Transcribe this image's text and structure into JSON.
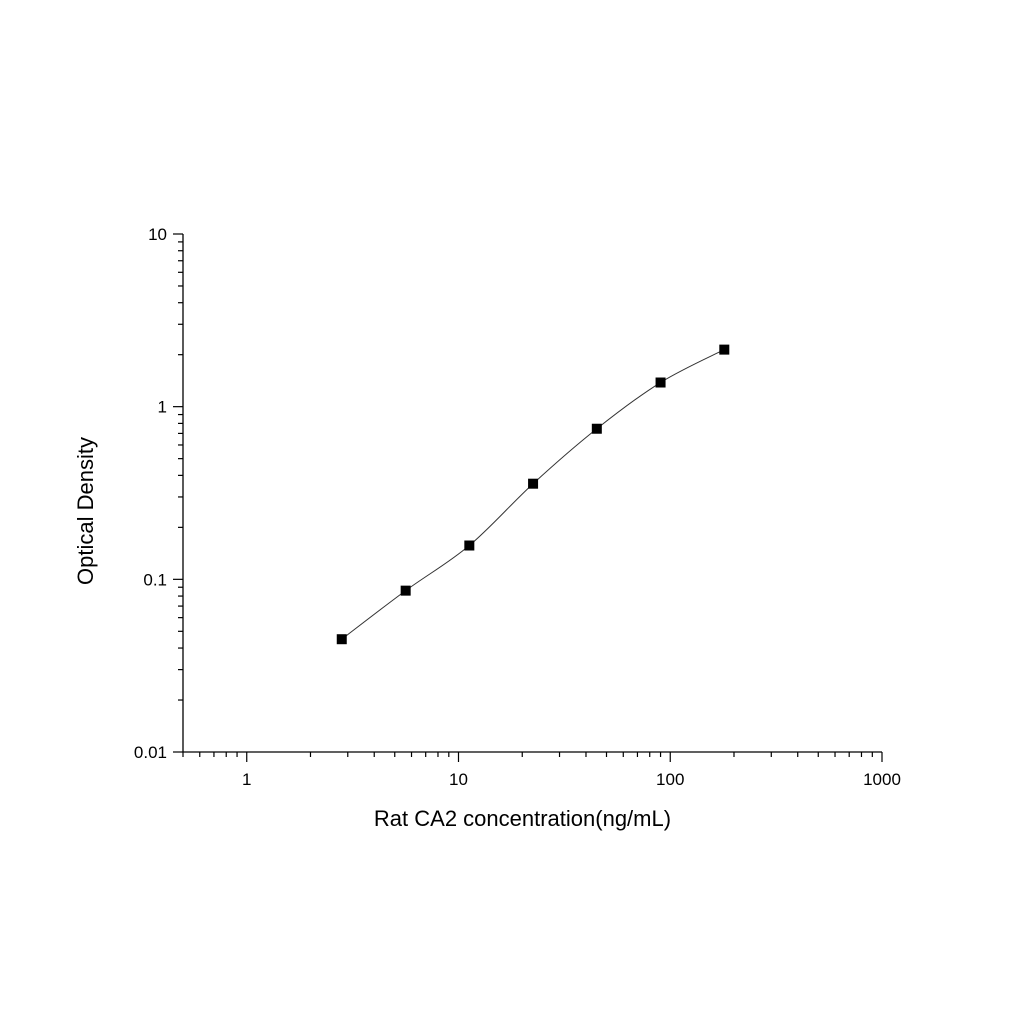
{
  "chart_data": {
    "type": "scatter",
    "title": "",
    "xlabel": "Rat CA2 concentration(ng/mL)",
    "ylabel": "Optical Density",
    "x_scale": "log",
    "y_scale": "log",
    "xlim": [
      0.5,
      1000
    ],
    "ylim": [
      0.01,
      10
    ],
    "x_ticks": [
      {
        "value": 1,
        "label": "1"
      },
      {
        "value": 10,
        "label": "10"
      },
      {
        "value": 100,
        "label": "100"
      },
      {
        "value": 1000,
        "label": "1000"
      }
    ],
    "y_ticks": [
      {
        "value": 0.01,
        "label": "0.01"
      },
      {
        "value": 0.1,
        "label": "0.1"
      },
      {
        "value": 1,
        "label": "1"
      },
      {
        "value": 10,
        "label": "10"
      }
    ],
    "grid": false,
    "legend": "none",
    "series": [
      {
        "x": [
          2.81,
          5.63,
          11.25,
          22.5,
          45,
          90,
          180
        ],
        "y": [
          0.045,
          0.086,
          0.157,
          0.358,
          0.745,
          1.38,
          2.14
        ],
        "marker": "square",
        "fit_curve": true
      }
    ],
    "colors": {
      "marker": "#000000",
      "curve": "#333333",
      "axis": "#000000"
    }
  }
}
